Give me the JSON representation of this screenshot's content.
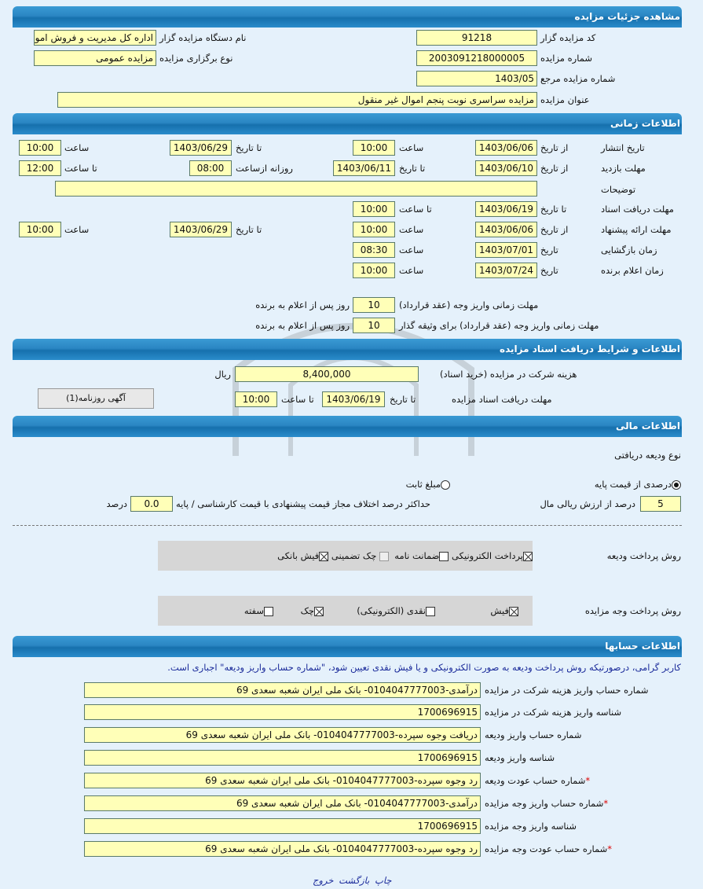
{
  "watermark": {
    "brand": "ParsNamadData",
    "line1": "مرکز فراهم آوری اطلاعات",
    "line2": "پایگاه اطلاع رسانی مناقصه ومزایده",
    "phone": "۰۲۱-۸۸۳۴۹۶۷۰-۵"
  },
  "s1": {
    "title": "مشاهده جزئیات مزایده",
    "code_label": "کد مزایده گزار",
    "code": "91218",
    "org_label": "نام دستگاه مزایده گزار",
    "org": "اداره کل مدیریت و فروش اموال",
    "num_label": "شماره مزایده",
    "num": "2003091218000005",
    "type_label": "نوع برگزاری مزایده",
    "type": "مزایده عمومی",
    "ref_label": "شماره مزایده مرجع",
    "ref": "1403/05",
    "subject_label": "عنوان مزایده",
    "subject": "مزایده سراسری نوبت پنجم اموال غیر منقول"
  },
  "s2": {
    "title": "اطلاعات زمانی",
    "pub": {
      "label": "تاریخ انتشار",
      "from_l": "از تاریخ",
      "from": "1403/06/06",
      "t1_l": "ساعت",
      "t1": "10:00",
      "to_l": "تا تاریخ",
      "to": "1403/06/29",
      "t2_l": "ساعت",
      "t2": "10:00"
    },
    "visit": {
      "label": "مهلت بازدید",
      "from_l": "از تاریخ",
      "from": "1403/06/10",
      "to_l": "تا تاریخ",
      "to": "1403/06/11",
      "daily_l": "روزانه ازساعت",
      "daily": "08:00",
      "t2_l": "تا ساعت",
      "t2": "12:00"
    },
    "desc_label": "توضیحات",
    "desc": "",
    "docs": {
      "label": "مهلت دریافت اسناد",
      "to_l": "تا تاریخ",
      "to": "1403/06/19",
      "t_l": "تا ساعت",
      "t": "10:00"
    },
    "offer": {
      "label": "مهلت ارائه پیشنهاد",
      "from_l": "از تاریخ",
      "from": "1403/06/06",
      "t1_l": "ساعت",
      "t1": "10:00",
      "to_l": "تا تاریخ",
      "to": "1403/06/29",
      "t2_l": "ساعت",
      "t2": "10:00"
    },
    "open": {
      "label": "زمان بازگشایی",
      "d_l": "تاریخ",
      "d": "1403/07/01",
      "t_l": "ساعت",
      "t": "08:30"
    },
    "winner": {
      "label": "زمان اعلام برنده",
      "d_l": "تاریخ",
      "d": "1403/07/24",
      "t_l": "ساعت",
      "t": "10:00"
    },
    "pay1_label": "مهلت زمانی واریز وجه (عقد قرارداد)",
    "pay1": "10",
    "pay1_suffix": "روز پس از اعلام به برنده",
    "pay2_label": "مهلت زمانی واریز وجه (عقد قرارداد) برای وثیقه گذار",
    "pay2": "10",
    "pay2_suffix": "روز پس از اعلام به برنده"
  },
  "s3": {
    "title": "اطلاعات و شرایط دریافت اسناد مزایده",
    "fee_label": "هزینه شرکت در مزایده (خرید اسناد)",
    "fee": "8,400,000",
    "currency": "ریال",
    "deadline_label": "مهلت دریافت اسناد مزایده",
    "to_l": "تا تاریخ",
    "to": "1403/06/19",
    "t_l": "تا ساعت",
    "t": "10:00",
    "ad_button": "آگهی روزنامه(1)"
  },
  "s4": {
    "title": "اطلاعات مالی",
    "deposit_type_label": "نوع ودیعه دریافتی",
    "opt_percent": "درصدی از قیمت پایه",
    "opt_fixed": "مبلغ ثابت",
    "selected": "درصدی از قیمت پایه",
    "percent": "5",
    "percent_suffix": "درصد از ارزش ریالی مال",
    "maxdiff_label": "حداکثر درصد اختلاف مجاز قیمت پیشنهادی با قیمت کارشناسی / پایه",
    "maxdiff": "0.0",
    "maxdiff_suffix": "درصد",
    "deposit_pay_label": "روش پرداخت ودیعه",
    "deposit_methods": [
      {
        "label": "پرداخت الکترونیکی",
        "checked": true
      },
      {
        "label": "ضمانت نامه",
        "checked": false
      },
      {
        "label": "چک تضمینی",
        "checked": false
      },
      {
        "label": "فیش بانکی",
        "checked": true
      }
    ],
    "auction_pay_label": "روش پرداخت وجه مزایده",
    "auction_methods": [
      {
        "label": "فیش",
        "checked": true
      },
      {
        "label": "نقدی (الکترونیکی)",
        "checked": false
      },
      {
        "label": "چک",
        "checked": true
      },
      {
        "label": "سفته",
        "checked": false
      }
    ]
  },
  "s5": {
    "title": "اطلاعات حسابها",
    "note": "کاربر گرامی، درصورتیکه روش پرداخت ودیعه به صورت الکترونیکی و یا فیش نقدی تعیین شود، \"شماره حساب واریز ودیعه\" اجباری است.",
    "rows": [
      {
        "label": "شماره حساب واریز هزینه شرکت در مزایده",
        "value": "درآمدی-0104047777003- بانک ملی ایران شعبه سعدی 69",
        "req": ""
      },
      {
        "label": "شناسه واریز هزینه شرکت در مزایده",
        "value": "1700696915",
        "req": ""
      },
      {
        "label": "شماره حساب واریز ودیعه",
        "value": "دریافت وجوه سپرده-0104047777003- بانک ملی ایران شعبه سعدی 69",
        "req": ""
      },
      {
        "label": "شناسه واریز ودیعه",
        "value": "1700696915",
        "req": ""
      },
      {
        "label": "شماره حساب عودت ودیعه",
        "value": "رد وجوه سپرده-0104047777003- بانک ملی ایران شعبه سعدی 69",
        "req": "*"
      },
      {
        "label": "شماره حساب واریز وجه مزایده",
        "value": "درآمدی-0104047777003- بانک ملی ایران شعبه سعدی 69",
        "req": "*"
      },
      {
        "label": "شناسه واریز وجه مزایده",
        "value": "1700696915",
        "req": ""
      },
      {
        "label": "شماره حساب عودت وجه مزایده",
        "value": "رد وجوه سپرده-0104047777003- بانک ملی ایران شعبه سعدی 69",
        "req": "*"
      }
    ]
  },
  "footer": {
    "print": "چاپ",
    "back": "بازگشت",
    "exit": "خروج"
  }
}
